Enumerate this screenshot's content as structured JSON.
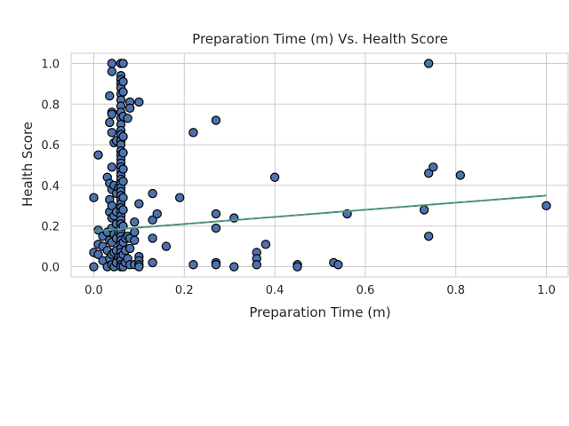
{
  "chart_data": {
    "type": "scatter",
    "title": "Preparation Time (m) Vs. Health Score",
    "xlabel": "Preparation Time (m)",
    "ylabel": "Health Score",
    "xlim": [
      -0.05,
      1.05
    ],
    "ylim": [
      -0.05,
      1.05
    ],
    "xticks": [
      0.0,
      0.2,
      0.4,
      0.6,
      0.8,
      1.0
    ],
    "yticks": [
      0.0,
      0.2,
      0.4,
      0.6,
      0.8,
      1.0
    ],
    "xtick_labels": [
      "0.0",
      "0.2",
      "0.4",
      "0.6",
      "0.8",
      "1.0"
    ],
    "ytick_labels": [
      "0.0",
      "0.2",
      "0.4",
      "0.6",
      "0.8",
      "1.0"
    ],
    "grid": true,
    "colors": {
      "point_fill": "#4c72b0",
      "point_edge": "#000000",
      "trend_solid": "#55a868",
      "trend_dashed": "#4c72b0",
      "grid": "#cccccc",
      "axes_edge": "#cccccc"
    },
    "trend_line": {
      "x": [
        0.0,
        1.0
      ],
      "y": [
        0.175,
        0.35
      ]
    },
    "points": [
      {
        "x": 0.0,
        "y": 0.34
      },
      {
        "x": 0.0,
        "y": 0.07
      },
      {
        "x": 0.0,
        "y": 0.0
      },
      {
        "x": 0.01,
        "y": 0.55
      },
      {
        "x": 0.01,
        "y": 0.18
      },
      {
        "x": 0.01,
        "y": 0.11
      },
      {
        "x": 0.01,
        "y": 0.06
      },
      {
        "x": 0.02,
        "y": 0.15
      },
      {
        "x": 0.02,
        "y": 0.1
      },
      {
        "x": 0.02,
        "y": 0.03
      },
      {
        "x": 0.03,
        "y": 0.44
      },
      {
        "x": 0.03,
        "y": 0.17
      },
      {
        "x": 0.03,
        "y": 0.08
      },
      {
        "x": 0.03,
        "y": 0.0
      },
      {
        "x": 0.035,
        "y": 0.84
      },
      {
        "x": 0.035,
        "y": 0.71
      },
      {
        "x": 0.035,
        "y": 0.41
      },
      {
        "x": 0.035,
        "y": 0.33
      },
      {
        "x": 0.035,
        "y": 0.27
      },
      {
        "x": 0.035,
        "y": 0.13
      },
      {
        "x": 0.035,
        "y": 0.04
      },
      {
        "x": 0.04,
        "y": 1.0
      },
      {
        "x": 0.04,
        "y": 0.96
      },
      {
        "x": 0.04,
        "y": 0.76
      },
      {
        "x": 0.04,
        "y": 0.75
      },
      {
        "x": 0.04,
        "y": 0.66
      },
      {
        "x": 0.04,
        "y": 0.49
      },
      {
        "x": 0.04,
        "y": 0.38
      },
      {
        "x": 0.04,
        "y": 0.3
      },
      {
        "x": 0.04,
        "y": 0.24
      },
      {
        "x": 0.04,
        "y": 0.19
      },
      {
        "x": 0.04,
        "y": 0.12
      },
      {
        "x": 0.04,
        "y": 0.06
      },
      {
        "x": 0.04,
        "y": 0.01
      },
      {
        "x": 0.045,
        "y": 0.61
      },
      {
        "x": 0.045,
        "y": 0.4
      },
      {
        "x": 0.045,
        "y": 0.25
      },
      {
        "x": 0.045,
        "y": 0.16
      },
      {
        "x": 0.045,
        "y": 0.07
      },
      {
        "x": 0.045,
        "y": 0.0
      },
      {
        "x": 0.05,
        "y": 0.62
      },
      {
        "x": 0.05,
        "y": 0.36
      },
      {
        "x": 0.05,
        "y": 0.27
      },
      {
        "x": 0.05,
        "y": 0.21
      },
      {
        "x": 0.05,
        "y": 0.14
      },
      {
        "x": 0.05,
        "y": 0.08
      },
      {
        "x": 0.05,
        "y": 0.02
      },
      {
        "x": 0.055,
        "y": 0.39
      },
      {
        "x": 0.055,
        "y": 0.17
      },
      {
        "x": 0.055,
        "y": 0.05
      },
      {
        "x": 0.06,
        "y": 1.0
      },
      {
        "x": 0.06,
        "y": 0.94
      },
      {
        "x": 0.06,
        "y": 0.92
      },
      {
        "x": 0.06,
        "y": 0.9
      },
      {
        "x": 0.06,
        "y": 0.88
      },
      {
        "x": 0.06,
        "y": 0.85
      },
      {
        "x": 0.06,
        "y": 0.82
      },
      {
        "x": 0.06,
        "y": 0.79
      },
      {
        "x": 0.06,
        "y": 0.76
      },
      {
        "x": 0.06,
        "y": 0.73
      },
      {
        "x": 0.06,
        "y": 0.7
      },
      {
        "x": 0.06,
        "y": 0.67
      },
      {
        "x": 0.06,
        "y": 0.65
      },
      {
        "x": 0.06,
        "y": 0.62
      },
      {
        "x": 0.06,
        "y": 0.6
      },
      {
        "x": 0.06,
        "y": 0.57
      },
      {
        "x": 0.06,
        "y": 0.55
      },
      {
        "x": 0.06,
        "y": 0.53
      },
      {
        "x": 0.06,
        "y": 0.51
      },
      {
        "x": 0.06,
        "y": 0.49
      },
      {
        "x": 0.06,
        "y": 0.47
      },
      {
        "x": 0.06,
        "y": 0.45
      },
      {
        "x": 0.06,
        "y": 0.43
      },
      {
        "x": 0.06,
        "y": 0.41
      },
      {
        "x": 0.06,
        "y": 0.39
      },
      {
        "x": 0.06,
        "y": 0.37
      },
      {
        "x": 0.06,
        "y": 0.35
      },
      {
        "x": 0.06,
        "y": 0.33
      },
      {
        "x": 0.06,
        "y": 0.31
      },
      {
        "x": 0.06,
        "y": 0.29
      },
      {
        "x": 0.06,
        "y": 0.27
      },
      {
        "x": 0.06,
        "y": 0.25
      },
      {
        "x": 0.06,
        "y": 0.23
      },
      {
        "x": 0.06,
        "y": 0.21
      },
      {
        "x": 0.06,
        "y": 0.19
      },
      {
        "x": 0.06,
        "y": 0.17
      },
      {
        "x": 0.06,
        "y": 0.15
      },
      {
        "x": 0.06,
        "y": 0.13
      },
      {
        "x": 0.06,
        "y": 0.11
      },
      {
        "x": 0.06,
        "y": 0.09
      },
      {
        "x": 0.06,
        "y": 0.07
      },
      {
        "x": 0.06,
        "y": 0.05
      },
      {
        "x": 0.06,
        "y": 0.03
      },
      {
        "x": 0.06,
        "y": 0.01
      },
      {
        "x": 0.06,
        "y": 0.0
      },
      {
        "x": 0.065,
        "y": 1.0
      },
      {
        "x": 0.065,
        "y": 0.91
      },
      {
        "x": 0.065,
        "y": 0.86
      },
      {
        "x": 0.065,
        "y": 0.74
      },
      {
        "x": 0.065,
        "y": 0.64
      },
      {
        "x": 0.065,
        "y": 0.56
      },
      {
        "x": 0.065,
        "y": 0.48
      },
      {
        "x": 0.065,
        "y": 0.42
      },
      {
        "x": 0.065,
        "y": 0.34
      },
      {
        "x": 0.065,
        "y": 0.28
      },
      {
        "x": 0.065,
        "y": 0.2
      },
      {
        "x": 0.065,
        "y": 0.12
      },
      {
        "x": 0.065,
        "y": 0.06
      },
      {
        "x": 0.065,
        "y": 0.0
      },
      {
        "x": 0.07,
        "y": 0.14
      },
      {
        "x": 0.07,
        "y": 0.08
      },
      {
        "x": 0.07,
        "y": 0.02
      },
      {
        "x": 0.075,
        "y": 0.73
      },
      {
        "x": 0.075,
        "y": 0.15
      },
      {
        "x": 0.075,
        "y": 0.04
      },
      {
        "x": 0.08,
        "y": 0.81
      },
      {
        "x": 0.08,
        "y": 0.78
      },
      {
        "x": 0.08,
        "y": 0.14
      },
      {
        "x": 0.08,
        "y": 0.09
      },
      {
        "x": 0.08,
        "y": 0.01
      },
      {
        "x": 0.09,
        "y": 0.22
      },
      {
        "x": 0.09,
        "y": 0.17
      },
      {
        "x": 0.09,
        "y": 0.13
      },
      {
        "x": 0.09,
        "y": 0.01
      },
      {
        "x": 0.1,
        "y": 0.81
      },
      {
        "x": 0.1,
        "y": 0.31
      },
      {
        "x": 0.1,
        "y": 0.05
      },
      {
        "x": 0.1,
        "y": 0.03
      },
      {
        "x": 0.1,
        "y": 0.01
      },
      {
        "x": 0.1,
        "y": 0.0
      },
      {
        "x": 0.13,
        "y": 0.36
      },
      {
        "x": 0.13,
        "y": 0.23
      },
      {
        "x": 0.13,
        "y": 0.14
      },
      {
        "x": 0.13,
        "y": 0.02
      },
      {
        "x": 0.14,
        "y": 0.26
      },
      {
        "x": 0.16,
        "y": 0.1
      },
      {
        "x": 0.19,
        "y": 0.34
      },
      {
        "x": 0.22,
        "y": 0.66
      },
      {
        "x": 0.22,
        "y": 0.01
      },
      {
        "x": 0.27,
        "y": 0.72
      },
      {
        "x": 0.27,
        "y": 0.26
      },
      {
        "x": 0.27,
        "y": 0.19
      },
      {
        "x": 0.27,
        "y": 0.02
      },
      {
        "x": 0.27,
        "y": 0.01
      },
      {
        "x": 0.31,
        "y": 0.24
      },
      {
        "x": 0.31,
        "y": 0.0
      },
      {
        "x": 0.36,
        "y": 0.07
      },
      {
        "x": 0.36,
        "y": 0.04
      },
      {
        "x": 0.36,
        "y": 0.01
      },
      {
        "x": 0.38,
        "y": 0.11
      },
      {
        "x": 0.4,
        "y": 0.44
      },
      {
        "x": 0.45,
        "y": 0.01
      },
      {
        "x": 0.45,
        "y": 0.0
      },
      {
        "x": 0.53,
        "y": 0.02
      },
      {
        "x": 0.54,
        "y": 0.01
      },
      {
        "x": 0.56,
        "y": 0.26
      },
      {
        "x": 0.73,
        "y": 0.28
      },
      {
        "x": 0.74,
        "y": 1.0
      },
      {
        "x": 0.74,
        "y": 0.46
      },
      {
        "x": 0.74,
        "y": 0.15
      },
      {
        "x": 0.75,
        "y": 0.49
      },
      {
        "x": 0.81,
        "y": 0.45
      },
      {
        "x": 1.0,
        "y": 0.3
      }
    ]
  }
}
